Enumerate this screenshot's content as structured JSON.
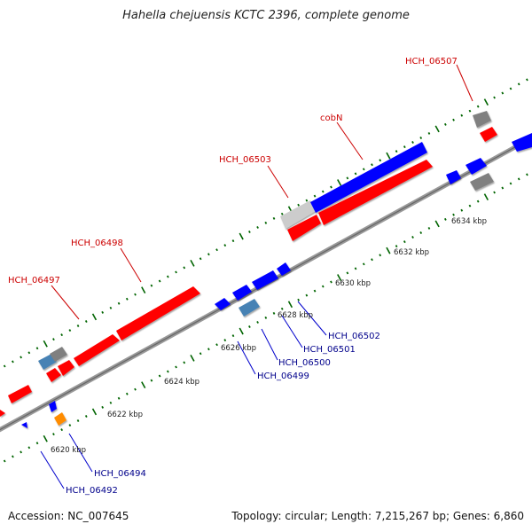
{
  "title": "Hahella chejuensis KCTC 2396, complete genome",
  "footer": {
    "accession": "Accession: NC_007645",
    "summary": "Topology: circular; Length: 7,215,267 bp; Genes: 6,860"
  },
  "colors": {
    "forward": "#ff0000",
    "reverse": "#0000ff",
    "grey": "#808080",
    "light_grey": "#cccccc",
    "steel": "#4682b4",
    "orange": "#ff8c00",
    "tick": "#006400",
    "label_top": "#cc0000",
    "label_bottom": "#00008b"
  },
  "scale_labels": [
    "6620 kbp",
    "6622 kbp",
    "6624 kbp",
    "6626 kbp",
    "6628 kbp",
    "6630 kbp",
    "6632 kbp",
    "6634 kbp"
  ],
  "top_labels": [
    "HCH_06497",
    "HCH_06498",
    "HCH_06503",
    "cobN",
    "HCH_06507"
  ],
  "bottom_labels": [
    "HCH_06492",
    "HCH_06494",
    "HCH_06499",
    "HCH_06500",
    "HCH_06501",
    "HCH_06502"
  ]
}
